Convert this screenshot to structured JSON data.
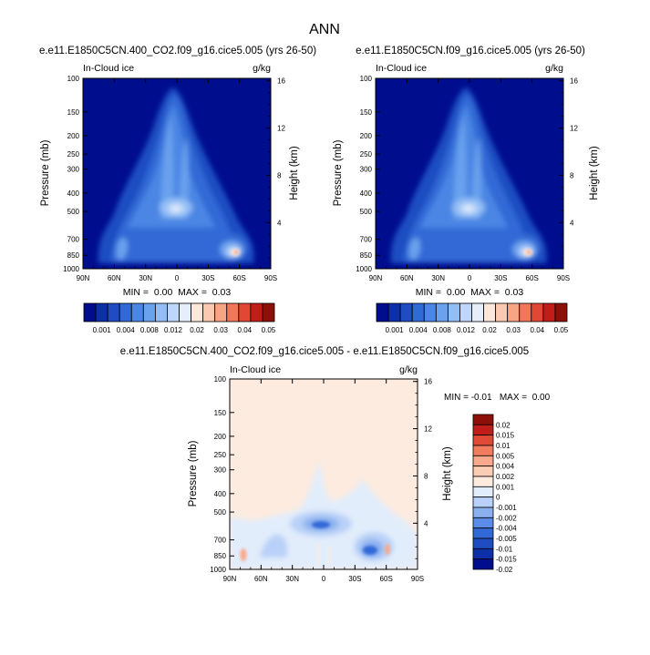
{
  "page_title": "ANN",
  "colors": {
    "abs_scale": [
      "#000e8e",
      "#0d2fa7",
      "#1f4dc1",
      "#3169d6",
      "#4b86e4",
      "#6ba2ee",
      "#93bef5",
      "#bdd6fa",
      "#e6eefb",
      "#fde7da",
      "#fbc9b0",
      "#f8a586",
      "#f2775a",
      "#e14734",
      "#c11e1a",
      "#8e0e08"
    ],
    "diff_scale": [
      "#000e8e",
      "#0d2fa7",
      "#1f4dc1",
      "#3169d6",
      "#5b8ce6",
      "#8bb0f0",
      "#b9d1f8",
      "#e2edfb",
      "#fdebdf",
      "#fbcdb5",
      "#f8a98c",
      "#f27c5e",
      "#e14a36",
      "#c11e1a",
      "#8e0e08"
    ]
  },
  "chart_data": [
    {
      "type": "heatmap",
      "title": "e.e11.E1850C5CN.400_CO2.f09_g16.cice5.005 (yrs 26-50)",
      "left_label": "In-Cloud ice",
      "right_label": "g/kg",
      "ylabel": "Pressure (mb)",
      "ylabel_right": "Height (km)",
      "x_ticks": [
        "90N",
        "60N",
        "30N",
        "0",
        "30S",
        "60S",
        "90S"
      ],
      "y_ticks": [
        "100",
        "150",
        "200",
        "250",
        "300",
        "400",
        "500",
        "700",
        "850",
        "1000"
      ],
      "y_right_ticks": [
        "16",
        "12",
        "8",
        "4"
      ],
      "stats": "MIN =  0.00  MAX =  0.03",
      "levels": [
        "0.001",
        "0.004",
        "0.008",
        "0.012",
        "0.02",
        "0.03",
        "0.04",
        "0.05"
      ]
    },
    {
      "type": "heatmap",
      "title": "e.e11.E1850C5CN.f09_g16.cice5.005 (yrs 26-50)",
      "left_label": "In-Cloud ice",
      "right_label": "g/kg",
      "ylabel": "Pressure (mb)",
      "ylabel_right": "Height (km)",
      "x_ticks": [
        "90N",
        "60N",
        "30N",
        "0",
        "30S",
        "60S",
        "90S"
      ],
      "y_ticks": [
        "100",
        "150",
        "200",
        "250",
        "300",
        "400",
        "500",
        "700",
        "850",
        "1000"
      ],
      "y_right_ticks": [
        "16",
        "12",
        "8",
        "4"
      ],
      "stats": "MIN =  0.00  MAX =  0.03",
      "levels": [
        "0.001",
        "0.004",
        "0.008",
        "0.012",
        "0.02",
        "0.03",
        "0.04",
        "0.05"
      ]
    },
    {
      "type": "heatmap",
      "title": "e.e11.E1850C5CN.400_CO2.f09_g16.cice5.005 - e.e11.E1850C5CN.f09_g16.cice5.005",
      "left_label": "In-Cloud ice",
      "right_label": "g/kg",
      "ylabel": "Pressure (mb)",
      "ylabel_right": "Height (km)",
      "x_ticks": [
        "90N",
        "60N",
        "30N",
        "0",
        "30S",
        "60S",
        "90S"
      ],
      "y_ticks": [
        "100",
        "150",
        "200",
        "250",
        "300",
        "400",
        "500",
        "700",
        "850",
        "1000"
      ],
      "y_right_ticks": [
        "16",
        "12",
        "8",
        "4"
      ],
      "stats": "MIN = -0.01   MAX =  0.00",
      "levels": [
        "0.02",
        "0.015",
        "0.01",
        "0.005",
        "0.004",
        "0.002",
        "0.001",
        "0",
        "-0.001",
        "-0.002",
        "-0.004",
        "-0.005",
        "-0.01",
        "-0.015",
        "-0.02"
      ]
    }
  ]
}
